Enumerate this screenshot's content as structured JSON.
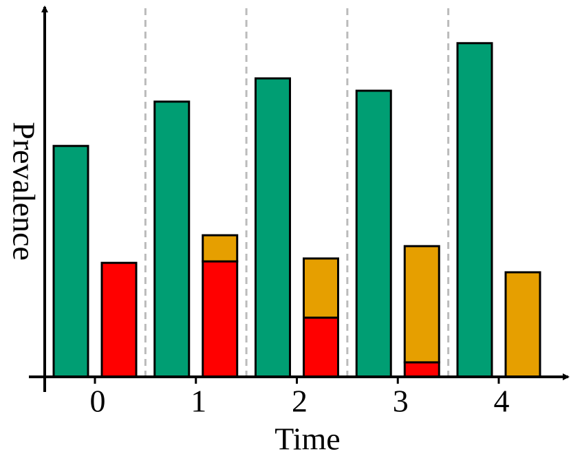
{
  "chart_data": {
    "type": "bar",
    "x_label": "Time",
    "y_label": "Prevalence",
    "categories": [
      "0",
      "1",
      "2",
      "3",
      "4"
    ],
    "series": [
      {
        "color": "#009e73",
        "values": [
          63.6,
          75.8,
          82.2,
          78.8,
          91.9
        ]
      },
      {
        "color": "#ff0000",
        "values": [
          31.4,
          31.8,
          16.3,
          4.0,
          0
        ]
      },
      {
        "color": "#e69f00",
        "values": [
          0,
          7.2,
          16.3,
          32.0,
          28.8
        ]
      }
    ],
    "ylim": [
      0,
      100
    ],
    "grid": false
  }
}
